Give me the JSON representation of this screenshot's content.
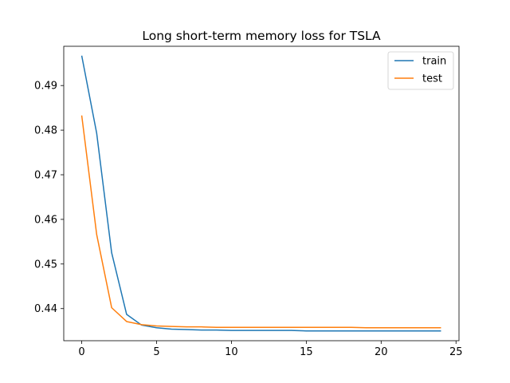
{
  "chart_data": {
    "type": "line",
    "title": "Long short-term memory loss for TSLA",
    "xlabel": "",
    "ylabel": "",
    "xlim": [
      -1.2,
      25.2
    ],
    "ylim": [
      0.4328,
      0.4988
    ],
    "xticks": [
      0,
      5,
      10,
      15,
      20,
      25
    ],
    "yticks": [
      0.44,
      0.45,
      0.46,
      0.47,
      0.48,
      0.49
    ],
    "grid": false,
    "legend_position": "top-right",
    "x": [
      0,
      1,
      2,
      3,
      4,
      5,
      6,
      7,
      8,
      9,
      10,
      11,
      12,
      13,
      14,
      15,
      16,
      17,
      18,
      19,
      20,
      21,
      22,
      23,
      24
    ],
    "series": [
      {
        "name": "train",
        "color": "#1f77b4",
        "values": [
          0.4967,
          0.4793,
          0.4525,
          0.4387,
          0.4363,
          0.4357,
          0.4354,
          0.4353,
          0.4352,
          0.4352,
          0.4351,
          0.4351,
          0.4351,
          0.4351,
          0.4351,
          0.435,
          0.435,
          0.435,
          0.435,
          0.435,
          0.435,
          0.435,
          0.435,
          0.435,
          0.435
        ]
      },
      {
        "name": "test",
        "color": "#ff7f0e",
        "values": [
          0.4833,
          0.4566,
          0.4402,
          0.4371,
          0.4364,
          0.4361,
          0.436,
          0.4359,
          0.4359,
          0.4358,
          0.4358,
          0.4358,
          0.4358,
          0.4358,
          0.4358,
          0.4358,
          0.4358,
          0.4358,
          0.4358,
          0.4357,
          0.4357,
          0.4357,
          0.4357,
          0.4357,
          0.4357
        ]
      }
    ]
  }
}
